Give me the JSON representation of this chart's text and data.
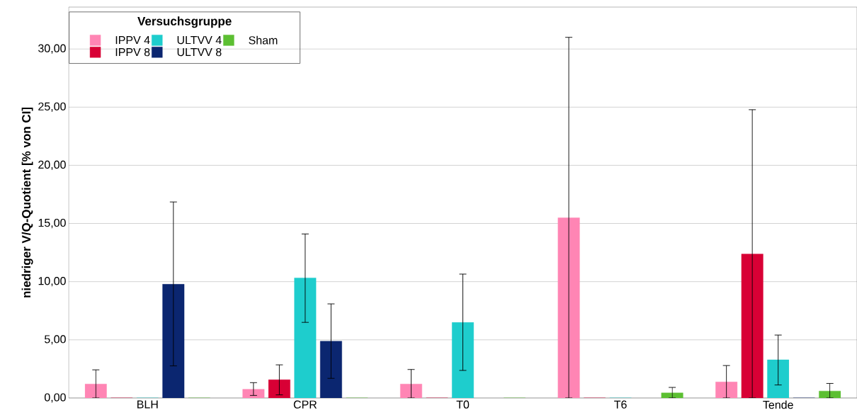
{
  "chart_data": {
    "type": "bar",
    "ylabel": "niedriger V/Q-Quotient [% von CI]",
    "legend_title": "Versuchsgruppe",
    "categories": [
      "BLH",
      "CPR",
      "T0",
      "T6",
      "Tende"
    ],
    "series": [
      {
        "name": "IPPV 4",
        "color": "#ff85b4",
        "values": [
          1.2,
          0.75,
          1.2,
          15.5,
          1.38
        ],
        "errors": [
          [
            0,
            2.42
          ],
          [
            0.22,
            1.32
          ],
          [
            0,
            2.45
          ],
          [
            0,
            31.0
          ],
          [
            0,
            2.79
          ]
        ]
      },
      {
        "name": "IPPV 8",
        "color": "#d80035",
        "values": [
          0,
          1.57,
          0,
          0,
          12.38
        ],
        "errors": [
          null,
          [
            0.27,
            2.85
          ],
          null,
          null,
          [
            0,
            24.78
          ]
        ]
      },
      {
        "name": "ULTVV 4",
        "color": "#1ecdcd",
        "values": [
          0,
          10.32,
          6.49,
          0,
          3.28
        ],
        "errors": [
          null,
          [
            6.5,
            14.1
          ],
          [
            2.37,
            10.65
          ],
          null,
          [
            1.12,
            5.41
          ]
        ]
      },
      {
        "name": "ULTVV 8",
        "color": "#0b2670",
        "values": [
          9.78,
          4.88,
          null,
          null,
          0
        ],
        "errors": [
          [
            2.76,
            16.85
          ],
          [
            1.69,
            8.09
          ],
          null,
          null,
          null
        ]
      },
      {
        "name": "Sham",
        "color": "#5cbf32",
        "values": [
          0,
          0,
          0,
          0.44,
          0.6
        ],
        "errors": [
          null,
          null,
          null,
          [
            0,
            0.91
          ],
          [
            0,
            1.25
          ]
        ]
      }
    ],
    "ylim": [
      0,
      33.6
    ],
    "yticks": [
      {
        "value": 0,
        "label": "0,00"
      },
      {
        "value": 5,
        "label": "5,00"
      },
      {
        "value": 10,
        "label": "10,00"
      },
      {
        "value": 15,
        "label": "15,00"
      },
      {
        "value": 20,
        "label": "20,00"
      },
      {
        "value": 25,
        "label": "25,00"
      },
      {
        "value": 30,
        "label": "30,00"
      }
    ],
    "grid": "y",
    "legend": "top left"
  }
}
